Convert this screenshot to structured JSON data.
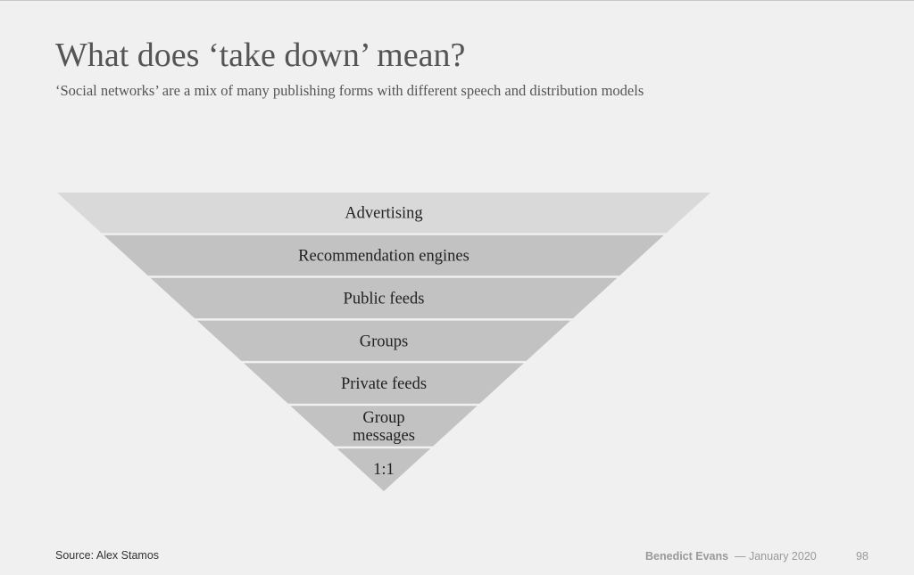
{
  "slide": {
    "title": "What does ‘take down’ mean?",
    "subtitle": "‘Social networks’ are a mix of many publishing forms with different speech and distribution models"
  },
  "funnel": {
    "layers": [
      {
        "lines": [
          "Advertising"
        ],
        "color": "#d9d9d9"
      },
      {
        "lines": [
          "Recommendation engines"
        ],
        "color": "#c2c2c2"
      },
      {
        "lines": [
          "Public feeds"
        ],
        "color": "#c2c2c2"
      },
      {
        "lines": [
          "Groups"
        ],
        "color": "#c2c2c2"
      },
      {
        "lines": [
          "Private feeds"
        ],
        "color": "#c2c2c2"
      },
      {
        "lines": [
          "Group",
          "messages"
        ],
        "color": "#c2c2c2"
      },
      {
        "lines": [
          "1:1"
        ],
        "color": "#c2c2c2"
      }
    ]
  },
  "footer": {
    "source": "Source: Alex Stamos",
    "author": "Benedict Evans",
    "date": "— January 2020",
    "page": "98"
  }
}
